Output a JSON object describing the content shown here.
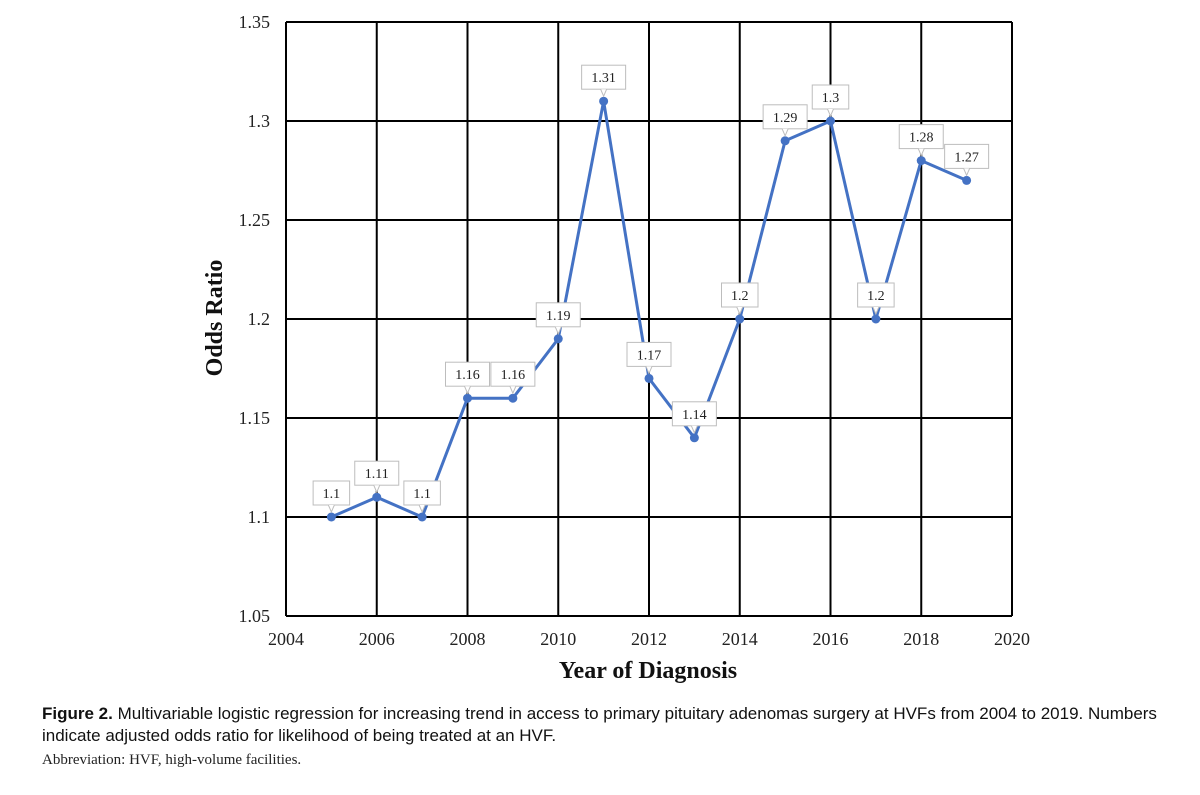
{
  "chart_data": {
    "type": "line",
    "title": "",
    "xlabel": "Year of Diagnosis",
    "ylabel": "Odds Ratio",
    "xlim": [
      2004,
      2020
    ],
    "ylim": [
      1.05,
      1.35
    ],
    "x_ticks": [
      2004,
      2006,
      2008,
      2010,
      2012,
      2014,
      2016,
      2018,
      2020
    ],
    "y_ticks": [
      1.05,
      1.1,
      1.15,
      1.2,
      1.25,
      1.3,
      1.35
    ],
    "x_tick_labels": [
      "2004",
      "2006",
      "2008",
      "2010",
      "2012",
      "2014",
      "2016",
      "2018",
      "2020"
    ],
    "y_tick_labels": [
      "1.05",
      "1.1",
      "1.15",
      "1.2",
      "1.25",
      "1.3",
      "1.35"
    ],
    "grid": true,
    "series": [
      {
        "name": "Adjusted odds ratio",
        "color": "#4472c4",
        "x": [
          2005,
          2006,
          2007,
          2008,
          2009,
          2010,
          2011,
          2012,
          2013,
          2014,
          2015,
          2016,
          2017,
          2018,
          2019
        ],
        "values": [
          1.1,
          1.11,
          1.1,
          1.16,
          1.16,
          1.19,
          1.31,
          1.17,
          1.14,
          1.2,
          1.29,
          1.3,
          1.2,
          1.28,
          1.27
        ],
        "labels": [
          "1.1",
          "1.11",
          "1.1",
          "1.16",
          "1.16",
          "1.19",
          "1.31",
          "1.17",
          "1.14",
          "1.2",
          "1.29",
          "1.3",
          "1.2",
          "1.28",
          "1.27"
        ]
      }
    ]
  },
  "caption": {
    "figure_label": "Figure 2.",
    "text": "Multivariable logistic regression for increasing trend in access to primary pituitary adenomas surgery at HVFs from 2004 to 2019. Numbers indicate adjusted odds ratio for likelihood of being treated at an HVF.",
    "abbreviation": "Abbreviation: HVF, high-volume facilities."
  }
}
